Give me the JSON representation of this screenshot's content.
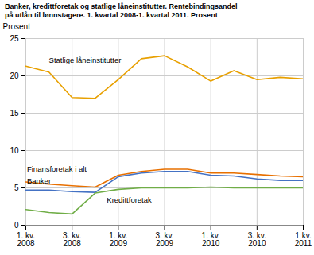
{
  "chart_data": {
    "type": "line",
    "title": "Banker, kredittforetak og statlige låneinstitutter. Rentebindingsandel\npå utlån til lønnstagere. 1. kvartal 2008-1. kvartal 2011. Prosent",
    "ylabel": "Prosent",
    "categories": [
      "1. kv.\n2008",
      null,
      "3. kv.\n2008",
      null,
      "1. kv.\n2009",
      null,
      "3. kv.\n2009",
      null,
      "1. kv.\n2010",
      null,
      "3. kv.\n2010",
      null,
      "1 kv.\n2011"
    ],
    "series": [
      {
        "name": "Statlige låneinstitutter",
        "color": "#E8A000",
        "values": [
          21.3,
          20.5,
          17.1,
          17.0,
          19.5,
          22.3,
          22.7,
          21.2,
          19.3,
          20.7,
          19.5,
          19.8,
          19.6
        ]
      },
      {
        "name": "Finansforetak i alt",
        "color": "#E87000",
        "values": [
          5.8,
          5.5,
          5.3,
          5.1,
          6.7,
          7.2,
          7.5,
          7.5,
          7.0,
          7.0,
          6.8,
          6.6,
          6.5
        ]
      },
      {
        "name": "Banker",
        "color": "#4472C4",
        "values": [
          4.7,
          4.7,
          4.5,
          4.4,
          6.5,
          7.0,
          7.2,
          7.2,
          6.7,
          6.6,
          6.2,
          6.0,
          6.0
        ]
      },
      {
        "name": "Kredittforetak",
        "color": "#70AD47",
        "values": [
          2.1,
          1.7,
          1.5,
          4.3,
          4.8,
          5.0,
          5.0,
          5.0,
          5.1,
          5.0,
          5.0,
          5.0,
          5.0
        ]
      }
    ],
    "annotations": [
      {
        "text": "Statlige låneinstitutter",
        "x": 1.0,
        "y": 21.8
      },
      {
        "text": "Finansforetak i alt",
        "x": 0.05,
        "y": 7.15
      },
      {
        "text": "Banker",
        "x": 0.05,
        "y": 5.6
      },
      {
        "text": "Kredittforetak",
        "x": 3.5,
        "y": 3.0
      }
    ],
    "ylim": [
      0,
      25
    ],
    "yticks": [
      0,
      5,
      10,
      15,
      20,
      25
    ],
    "grid": true
  }
}
